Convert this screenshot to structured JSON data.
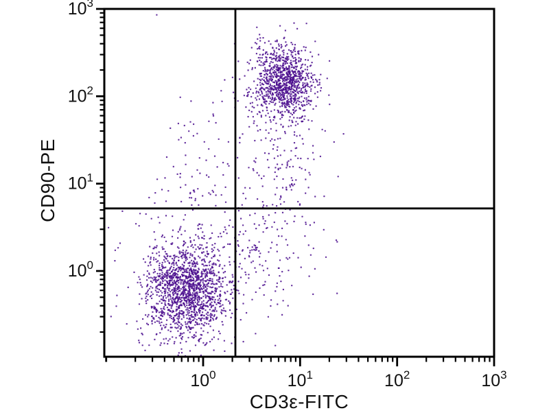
{
  "figure": {
    "background": "#ffffff",
    "axis_color": "#000000",
    "text_color": "#111111"
  },
  "chart_data": {
    "type": "scatter",
    "variant": "flow-cytometry-quadrant-dot-plot",
    "title": "",
    "xlabel": "CD3ε-FITC",
    "ylabel": "CD90-PE",
    "x_scale": "log",
    "y_scale": "log",
    "xlim": [
      0.0957,
      1000
    ],
    "ylim": [
      0.1043,
      1000
    ],
    "grid": false,
    "legend": false,
    "tick_base": "10",
    "x_tick_exponents": [
      0,
      1,
      2,
      3
    ],
    "y_tick_exponents": [
      0,
      1,
      2,
      3
    ],
    "minor_tick_multiples": [
      2,
      3,
      4,
      5,
      6,
      7,
      8,
      9
    ],
    "quadrant_gates": {
      "x": 2.15,
      "y": 5.2
    },
    "dot_color": "#4B0E8E",
    "dot_size_px": 2.2,
    "seed": 1337,
    "populations": [
      {
        "name": "double-negative cluster (lower left, CD3- CD90-)",
        "n": 1600,
        "center": [
          0.66,
          0.6
        ],
        "log10_sd": [
          0.205,
          0.26
        ]
      },
      {
        "name": "CD3+ CD90+ cluster (upper right)",
        "n": 1050,
        "center": [
          6.8,
          145
        ],
        "log10_sd": [
          0.155,
          0.21
        ]
      },
      {
        "name": "trail below CD3+ CD90+ cluster",
        "n": 150,
        "center": [
          7.0,
          18
        ],
        "log10_sd": [
          0.19,
          0.42
        ]
      },
      {
        "name": "CD90+ trail (upper left of gate)",
        "n": 95,
        "center": [
          0.95,
          12
        ],
        "log10_sd": [
          0.23,
          0.52
        ]
      },
      {
        "name": "CD3+ scatter (lower right quadrant)",
        "n": 135,
        "center": [
          4.2,
          1.5
        ],
        "log10_sd": [
          0.27,
          0.33
        ]
      },
      {
        "name": "sparse background",
        "n": 40,
        "center": [
          1.5,
          3.0
        ],
        "log10_sd": [
          0.5,
          0.5
        ]
      }
    ]
  }
}
